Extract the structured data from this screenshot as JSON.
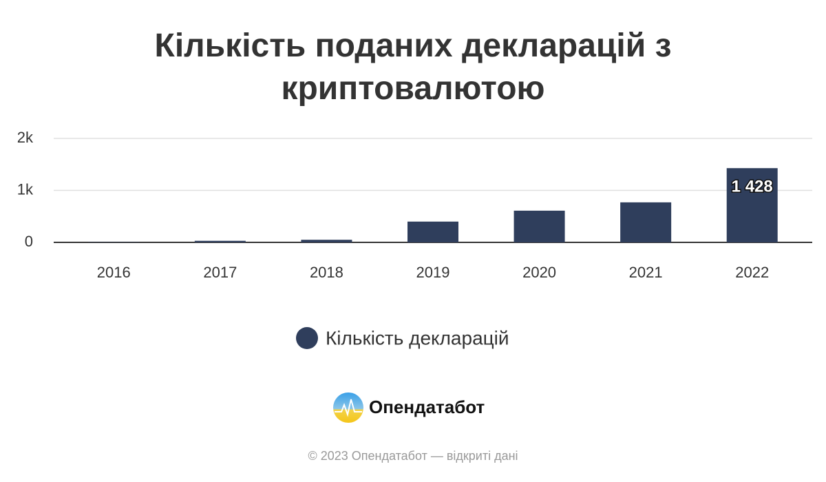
{
  "chart_data": {
    "type": "bar",
    "title": "Кількість поданих декларацій з криптовалютою",
    "categories": [
      "2016",
      "2017",
      "2018",
      "2019",
      "2020",
      "2021",
      "2022"
    ],
    "series": [
      {
        "name": "Кількість декларацій",
        "color": "#2f3e5c",
        "values": [
          5,
          30,
          50,
          400,
          610,
          770,
          1428
        ],
        "value_labels": [
          null,
          null,
          null,
          null,
          null,
          null,
          "1 428"
        ]
      }
    ],
    "ylim": [
      0,
      2000
    ],
    "yticks": [
      0,
      {
        "value": 1000,
        "label": "1k"
      },
      {
        "value": 2000,
        "label": "2k"
      }
    ],
    "grid": true
  },
  "branding": {
    "logo": "Опендатабот",
    "footer": "© 2023 Опендатабот — відкриті дані"
  }
}
